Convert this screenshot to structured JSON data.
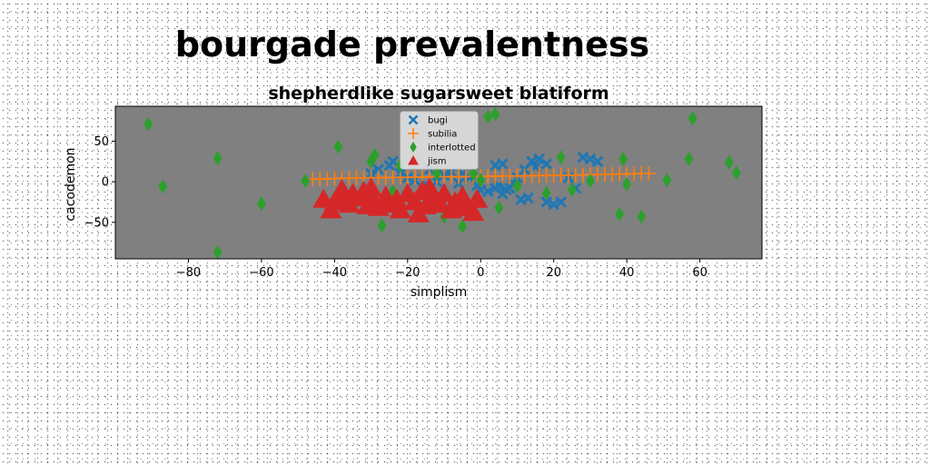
{
  "chart_data": {
    "type": "scatter",
    "suptitle": "bourgade prevalentness",
    "title": "shepherdlike sugarsweet blatiform",
    "xlabel": "simplism",
    "ylabel": "cacodemon",
    "xlim": [
      -100,
      77
    ],
    "ylim": [
      -95,
      93
    ],
    "xticks": [
      -80,
      -60,
      -40,
      -20,
      0,
      20,
      40,
      60
    ],
    "yticks": [
      -50,
      0,
      50
    ],
    "grid": false,
    "legend_position": "top-center",
    "background": "#808080",
    "series": [
      {
        "name": "bugi",
        "marker": "x-filled",
        "color": "#1f77b4",
        "points": [
          [
            -28,
            15
          ],
          [
            -25,
            20
          ],
          [
            -24,
            25
          ],
          [
            -22,
            10
          ],
          [
            -20,
            5
          ],
          [
            -18,
            2
          ],
          [
            -15,
            -3
          ],
          [
            -12,
            0
          ],
          [
            -10,
            8
          ],
          [
            -8,
            12
          ],
          [
            -5,
            10
          ],
          [
            -3,
            5
          ],
          [
            -1,
            -5
          ],
          [
            0,
            -10
          ],
          [
            2,
            -12
          ],
          [
            4,
            -8
          ],
          [
            5,
            -5
          ],
          [
            6,
            -15
          ],
          [
            7,
            -10
          ],
          [
            8,
            -8
          ],
          [
            10,
            5
          ],
          [
            11,
            -22
          ],
          [
            12,
            15
          ],
          [
            13,
            -20
          ],
          [
            14,
            25
          ],
          [
            16,
            28
          ],
          [
            18,
            22
          ],
          [
            18,
            -25
          ],
          [
            20,
            -28
          ],
          [
            22,
            -25
          ],
          [
            24,
            5
          ],
          [
            26,
            -8
          ],
          [
            28,
            30
          ],
          [
            30,
            28
          ],
          [
            32,
            25
          ],
          [
            -30,
            10
          ],
          [
            -14,
            15
          ],
          [
            4,
            20
          ],
          [
            6,
            22
          ],
          [
            15,
            18
          ],
          [
            -6,
            -2
          ],
          [
            9,
            -3
          ]
        ]
      },
      {
        "name": "subilia",
        "marker": "plus",
        "color": "#ff7f0e",
        "points": [
          [
            -46,
            3
          ],
          [
            -44,
            3.4
          ],
          [
            -42,
            3.6
          ],
          [
            -40,
            4
          ],
          [
            -38,
            4.2
          ],
          [
            -36,
            4.4
          ],
          [
            -34,
            4.6
          ],
          [
            -32,
            4.8
          ],
          [
            -30,
            5
          ],
          [
            -28,
            5
          ],
          [
            -26,
            5.1
          ],
          [
            -24,
            5.3
          ],
          [
            -22,
            5.4
          ],
          [
            -20,
            5.5
          ],
          [
            -18,
            5.6
          ],
          [
            -16,
            5.7
          ],
          [
            -14,
            5.8
          ],
          [
            -12,
            6
          ],
          [
            -10,
            6
          ],
          [
            -8,
            6.2
          ],
          [
            -6,
            6.3
          ],
          [
            -4,
            6.4
          ],
          [
            -2,
            6.5
          ],
          [
            0,
            6.6
          ],
          [
            2,
            6.8
          ],
          [
            4,
            6.8
          ],
          [
            6,
            7
          ],
          [
            8,
            7.1
          ],
          [
            10,
            7.2
          ],
          [
            12,
            7.3
          ],
          [
            14,
            7.4
          ],
          [
            16,
            7.6
          ],
          [
            18,
            7.7
          ],
          [
            20,
            7.8
          ],
          [
            22,
            8
          ],
          [
            24,
            8
          ],
          [
            26,
            8.2
          ],
          [
            28,
            8.4
          ],
          [
            30,
            8.6
          ],
          [
            32,
            8.8
          ],
          [
            34,
            9
          ],
          [
            36,
            9.2
          ],
          [
            38,
            9.4
          ],
          [
            40,
            9.6
          ],
          [
            42,
            9.8
          ],
          [
            44,
            10
          ],
          [
            46,
            10.2
          ]
        ]
      },
      {
        "name": "interlotted",
        "marker": "thin-diamond",
        "color": "#2ca02c",
        "points": [
          [
            -91,
            71
          ],
          [
            -87,
            -6
          ],
          [
            -72,
            29
          ],
          [
            -72,
            -87
          ],
          [
            -60,
            -27
          ],
          [
            -48,
            1
          ],
          [
            -39,
            43
          ],
          [
            -30,
            25
          ],
          [
            -29,
            33
          ],
          [
            -27,
            -54
          ],
          [
            -24,
            -12
          ],
          [
            -22,
            20
          ],
          [
            -16,
            -13
          ],
          [
            -12,
            10
          ],
          [
            -10,
            -43
          ],
          [
            -5,
            -55
          ],
          [
            -2,
            10
          ],
          [
            0,
            2
          ],
          [
            2,
            80
          ],
          [
            4,
            83
          ],
          [
            5,
            -32
          ],
          [
            10,
            -5
          ],
          [
            18,
            -14
          ],
          [
            22,
            30
          ],
          [
            25,
            -10
          ],
          [
            30,
            1
          ],
          [
            38,
            -40
          ],
          [
            39,
            28
          ],
          [
            40,
            -3
          ],
          [
            44,
            -43
          ],
          [
            51,
            2
          ],
          [
            57,
            28
          ],
          [
            58,
            78
          ],
          [
            68,
            24
          ],
          [
            70,
            11
          ]
        ]
      },
      {
        "name": "jism",
        "marker": "triangle-up",
        "color": "#d62728",
        "points": [
          [
            -43,
            -22
          ],
          [
            -41,
            -35
          ],
          [
            -40,
            -25
          ],
          [
            -39,
            -18
          ],
          [
            -38,
            -10
          ],
          [
            -36,
            -28
          ],
          [
            -35,
            -15
          ],
          [
            -33,
            -20
          ],
          [
            -32,
            -12
          ],
          [
            -31,
            -30
          ],
          [
            -30,
            -8
          ],
          [
            -29,
            -25
          ],
          [
            -28,
            -32
          ],
          [
            -26,
            -18
          ],
          [
            -25,
            -28
          ],
          [
            -23,
            -22
          ],
          [
            -22,
            -35
          ],
          [
            -20,
            -15
          ],
          [
            -18,
            -25
          ],
          [
            -17,
            -40
          ],
          [
            -16,
            -12
          ],
          [
            -15,
            -30
          ],
          [
            -14,
            -8
          ],
          [
            -13,
            -20
          ],
          [
            -11,
            -28
          ],
          [
            -10,
            -15
          ],
          [
            -8,
            -35
          ],
          [
            -7,
            -25
          ],
          [
            -5,
            -18
          ],
          [
            -4,
            -32
          ],
          [
            -2,
            -38
          ],
          [
            -1,
            -22
          ]
        ]
      }
    ]
  }
}
